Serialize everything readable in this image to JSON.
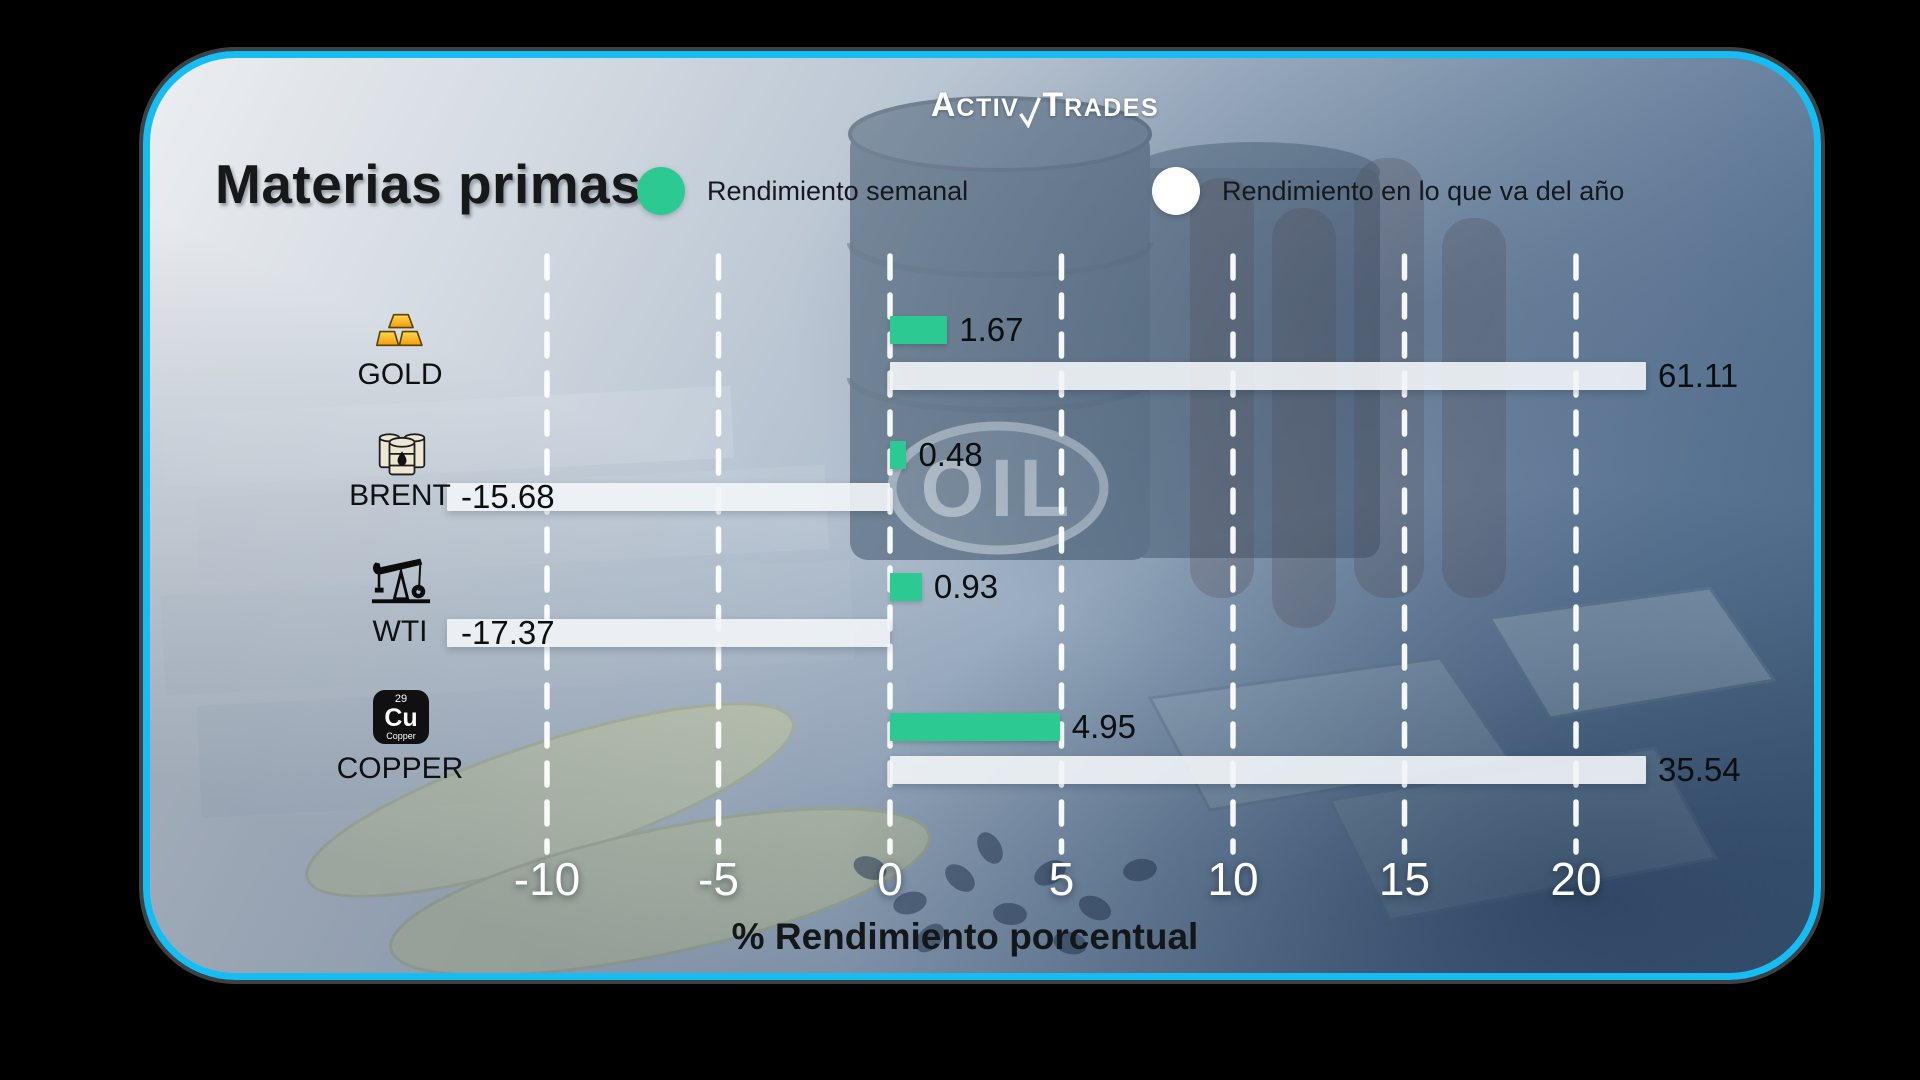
{
  "brand": {
    "part1": "A",
    "part2": "CTIV",
    "part3": "T",
    "part4": "RADES"
  },
  "title": "Materias primas",
  "legend": [
    {
      "label": "Rendimiento semanal",
      "color": "#2dc993"
    },
    {
      "label": "Rendimiento en lo que va del año",
      "color": "#ffffff"
    }
  ],
  "chart_data": {
    "type": "bar",
    "orientation": "horizontal",
    "title": "Materias primas",
    "categories": [
      "GOLD",
      "BRENT",
      "WTI",
      "COPPER"
    ],
    "series": [
      {
        "name": "Rendimiento semanal",
        "color": "#2dc993",
        "values": [
          1.67,
          0.48,
          0.93,
          4.95
        ]
      },
      {
        "name": "Rendimiento en lo que va del año",
        "color": "#f2f5f8",
        "values": [
          61.11,
          -15.68,
          -17.37,
          35.54
        ]
      }
    ],
    "xlabel": "% Rendimiento porcentual",
    "x_ticks": [
      -10,
      -5,
      0,
      5,
      10,
      15,
      20
    ],
    "x_visible_range": [
      -12.9,
      22.0
    ],
    "grid": "vertical-dashed-white",
    "legend_position": "top",
    "value_label_decimals": 2
  },
  "row_icons": [
    {
      "name": "gold-bars-icon"
    },
    {
      "name": "oil-drums-icon"
    },
    {
      "name": "pump-jack-icon"
    },
    {
      "name": "copper-element-icon",
      "number": "29",
      "symbol": "Cu",
      "caption": "Copper"
    }
  ],
  "background": {
    "oil_label": "OIL"
  },
  "colors": {
    "accent_green": "#2dc993",
    "card_border": "#16bdf3",
    "bar_white": "#f2f5f8"
  }
}
